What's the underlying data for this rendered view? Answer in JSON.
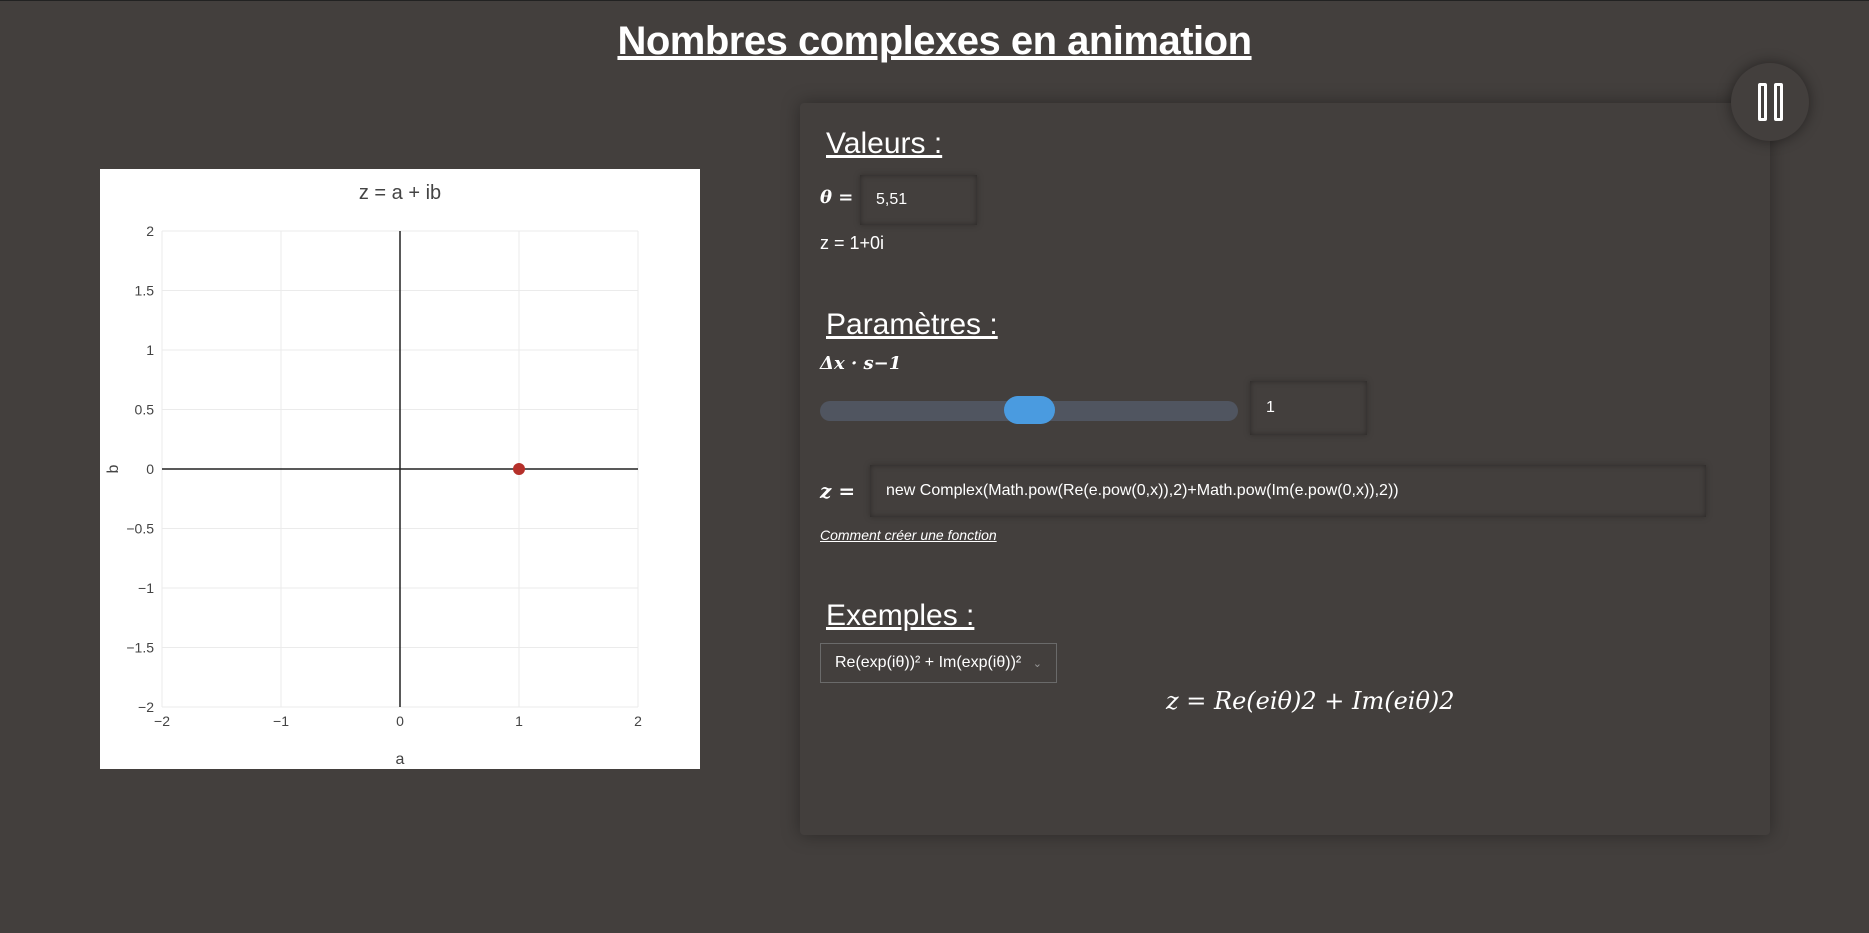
{
  "page": {
    "title": "Nombres complexes en animation"
  },
  "values": {
    "title": "Valeurs :",
    "theta_label": "θ =",
    "theta_value": "5,51",
    "z_text": "z = 1+0i"
  },
  "params": {
    "title": "Paramètres :",
    "rate_label": "Δx · s−1",
    "speed_slider_value": 0.5,
    "speed_value": "1",
    "z_label": "z =",
    "function_value": "new Complex(Math.pow(Re(e.pow(0,x)),2)+Math.pow(Im(e.pow(0,x)),2))",
    "help_link": "Comment créer une fonction"
  },
  "examples": {
    "title": "Exemples :",
    "selected": "Re(exp(iθ))² + Im(exp(iθ))²",
    "formula": "z = Re(eiθ)2 + Im(eiθ)2"
  },
  "controls": {
    "pause_icon": "pause-icon"
  },
  "chart_data": {
    "type": "scatter",
    "title": "z = a + ib",
    "xlabel": "a",
    "ylabel": "b",
    "xlim": [
      -2,
      2
    ],
    "ylim": [
      -2,
      2
    ],
    "x_ticks": [
      "−2",
      "−1",
      "0",
      "1",
      "2"
    ],
    "y_ticks": [
      "2",
      "1.5",
      "1",
      "0.5",
      "0",
      "−0.5",
      "−1",
      "−1.5",
      "−2"
    ],
    "grid": true,
    "points": [
      {
        "x": 1,
        "y": 0
      }
    ],
    "point_color": "#b5302a"
  }
}
